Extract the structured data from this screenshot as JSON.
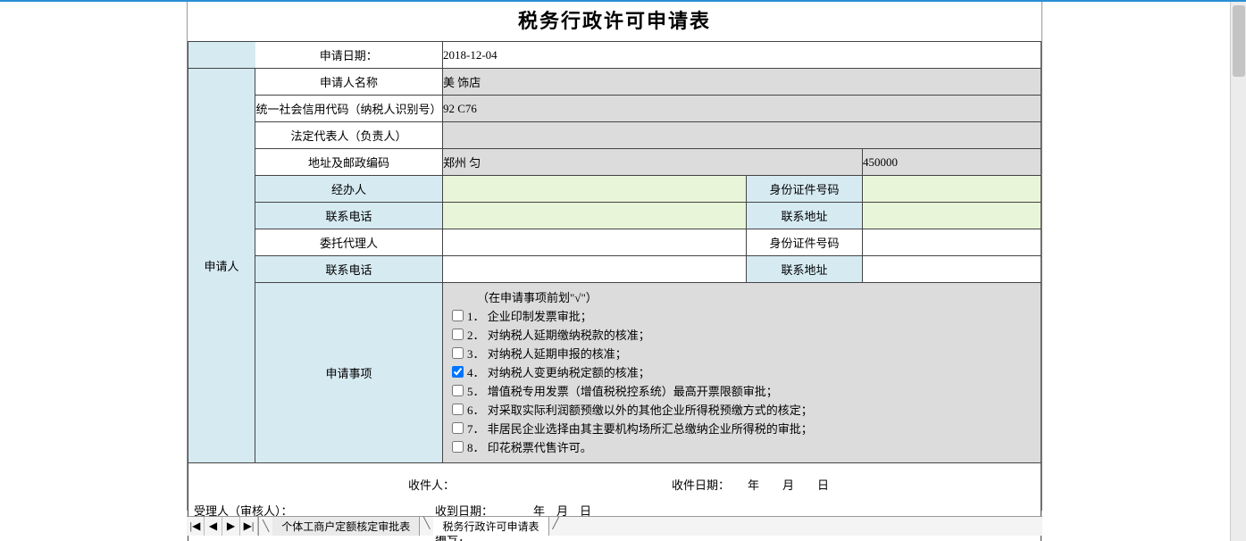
{
  "title": "税务行政许可申请表",
  "colors": {
    "side_label_bg": "#d6eaf2",
    "gray_cell_bg": "#dcdcdc",
    "green_cell_bg": "#e9f5d8",
    "border": "#444444",
    "top_accent": "#2a8fd4"
  },
  "date_row": {
    "label": "申请日期：",
    "value": "2018-12-04"
  },
  "applicant": {
    "side_label": "申请人",
    "name_label": "申请人名称",
    "name_value": "美                                    饰店",
    "credit_label": "统一社会信用代码（纳税人识别号）",
    "credit_value": "92                         C76",
    "legal_label": "法定代表人（负责人）",
    "legal_value": "",
    "addr_label": "地址及邮政编码",
    "addr_value": "郑州                                            匀",
    "postcode": "450000",
    "handler_label": "经办人",
    "handler_value": "",
    "id_label": "身份证件号码",
    "id_value": "",
    "phone_label": "联系电话",
    "phone_value": "",
    "contact_addr_label": "联系地址",
    "contact_addr_value": "",
    "agent_label": "委托代理人",
    "agent_value": "",
    "agent_id_label": "身份证件号码",
    "agent_id_value": "",
    "agent_phone_label": "联系电话",
    "agent_phone_value": "",
    "agent_addr_label": "联系地址",
    "agent_addr_value": ""
  },
  "items_section": {
    "side_label": "申请事项",
    "note": "（在申请事项前划\"√\"）",
    "items": [
      {
        "idx": "1．",
        "label": "企业印制发票审批；",
        "checked": false
      },
      {
        "idx": "2．",
        "label": "对纳税人延期缴纳税款的核准；",
        "checked": false
      },
      {
        "idx": "3．",
        "label": "对纳税人延期申报的核准；",
        "checked": false
      },
      {
        "idx": "4．",
        "label": "对纳税人变更纳税定额的核准；",
        "checked": true
      },
      {
        "idx": "5．",
        "label": "增值税专用发票（增值税税控系统）最高开票限额审批；",
        "checked": false
      },
      {
        "idx": "6．",
        "label": "对采取实际利润额预缴以外的其他企业所得税预缴方式的核定；",
        "checked": false
      },
      {
        "idx": "7．",
        "label": "非居民企业选择由其主要机构场所汇总缴纳企业所得税的审批；",
        "checked": false
      },
      {
        "idx": "8．",
        "label": "印花税票代售许可。",
        "checked": false
      }
    ]
  },
  "footer": {
    "receiver_label": "受理人（审核人）：",
    "recv_person_label": "收件人：",
    "recv_date_label": "收件日期：",
    "recv_date_ymd": "年　　月　　日",
    "recvd_date_label": "收到日期：",
    "recvd_ymd": "年　月　日",
    "serial_label": "编号："
  },
  "tabs": {
    "nav": {
      "first": "|◀",
      "prev": "◀",
      "next": "▶",
      "last": "▶|"
    },
    "items": [
      {
        "label": "个体工商户定额核定审批表",
        "active": false
      },
      {
        "label": "税务行政许可申请表",
        "active": true
      }
    ]
  }
}
